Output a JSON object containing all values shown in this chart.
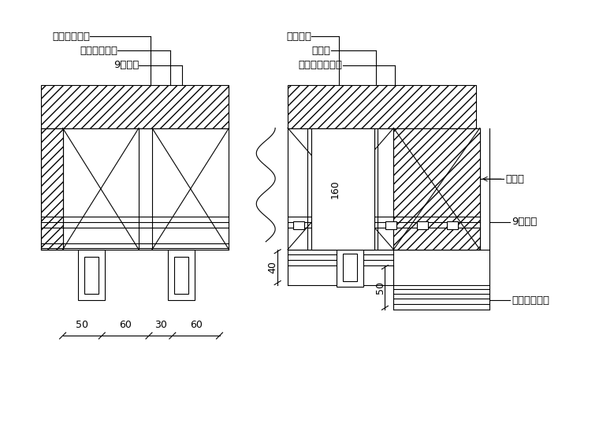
{
  "bg_color": "#ffffff",
  "labels": {
    "tl1": "柚木夹板清漆",
    "tl2": "砂光不锈钢板",
    "tl3": "9厘夹板",
    "tr1": "磨砂玻璃",
    "tr2": "广告钉",
    "tr3": "砂光不锈钢方管",
    "r1": "木龙骨",
    "r2": "9厘夹板",
    "r3": "柚木夹板清漆"
  },
  "dims": {
    "d50a": "50",
    "d60a": "60",
    "d30": "30",
    "d60b": "60",
    "d40": "40",
    "d50b": "50",
    "d160": "160"
  }
}
